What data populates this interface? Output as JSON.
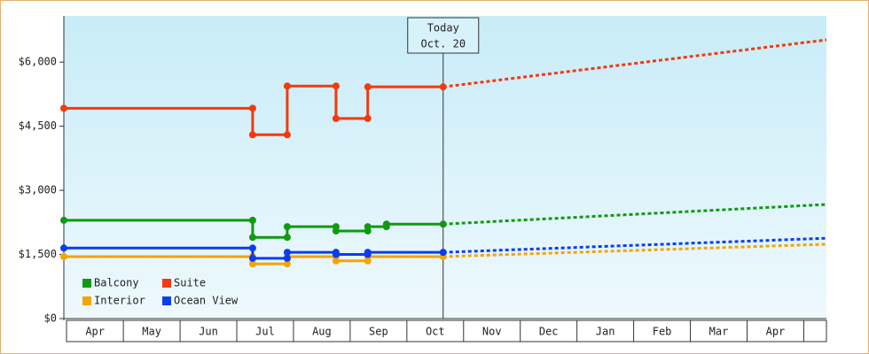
{
  "chart_data": {
    "type": "step-line",
    "xlim": [
      -0.05,
      13.4
    ],
    "xticks": [
      {
        "value": 0.5,
        "label": "Apr"
      },
      {
        "value": 1.5,
        "label": "May"
      },
      {
        "value": 2.5,
        "label": "Jun"
      },
      {
        "value": 3.5,
        "label": "Jul"
      },
      {
        "value": 4.5,
        "label": "Aug"
      },
      {
        "value": 5.5,
        "label": "Sep"
      },
      {
        "value": 6.5,
        "label": "Oct"
      },
      {
        "value": 7.5,
        "label": "Nov"
      },
      {
        "value": 8.5,
        "label": "Dec"
      },
      {
        "value": 9.5,
        "label": "Jan"
      },
      {
        "value": 10.5,
        "label": "Feb"
      },
      {
        "value": 11.5,
        "label": "Mar"
      },
      {
        "value": 12.5,
        "label": "Apr"
      }
    ],
    "ylim": [
      0,
      7080
    ],
    "yticks": [
      {
        "value": 0,
        "label": "$0"
      },
      {
        "value": 1500,
        "label": "$1,500"
      },
      {
        "value": 3000,
        "label": "$3,000"
      },
      {
        "value": 4500,
        "label": "$4,500"
      },
      {
        "value": 6000,
        "label": "$6,000"
      }
    ],
    "annotation": {
      "x": 6.64,
      "lines": [
        "Today",
        "Oct. 20"
      ]
    },
    "legend": "lower left",
    "series": [
      {
        "name": "Balcony",
        "color": "#119911",
        "x": [
          -0.05,
          3.28,
          3.28,
          3.89,
          3.89,
          4.75,
          4.75,
          5.31,
          5.31,
          5.64,
          5.64,
          6.64
        ],
        "values": [
          2300,
          2300,
          1900,
          1900,
          2150,
          2150,
          2050,
          2050,
          2150,
          2150,
          2210,
          2210
        ],
        "forecast_x": [
          6.64,
          13.4
        ],
        "forecast": [
          2210,
          2670
        ]
      },
      {
        "name": "Suite",
        "color": "#f23a0e",
        "x": [
          -0.05,
          3.28,
          3.28,
          3.89,
          3.89,
          4.75,
          4.75,
          5.31,
          5.31,
          6.64
        ],
        "values": [
          4920,
          4920,
          4300,
          4300,
          5440,
          5440,
          4680,
          4680,
          5420,
          5420
        ],
        "forecast_x": [
          6.64,
          13.4
        ],
        "forecast": [
          5420,
          6520
        ]
      },
      {
        "name": "Interior",
        "color": "#f5a300",
        "x": [
          -0.05,
          3.28,
          3.28,
          3.89,
          3.89,
          4.75,
          4.75,
          5.31,
          5.31,
          6.64
        ],
        "values": [
          1450,
          1450,
          1280,
          1280,
          1450,
          1450,
          1350,
          1350,
          1450,
          1450
        ],
        "forecast_x": [
          6.64,
          13.4
        ],
        "forecast": [
          1450,
          1740
        ]
      },
      {
        "name": "Ocean View",
        "color": "#0b3df0",
        "x": [
          -0.05,
          3.28,
          3.28,
          3.89,
          3.89,
          4.75,
          4.75,
          5.31,
          5.31,
          6.64
        ],
        "values": [
          1650,
          1650,
          1410,
          1410,
          1550,
          1550,
          1500,
          1500,
          1550,
          1550
        ],
        "forecast_x": [
          6.64,
          13.4
        ],
        "forecast": [
          1550,
          1880
        ]
      }
    ]
  }
}
